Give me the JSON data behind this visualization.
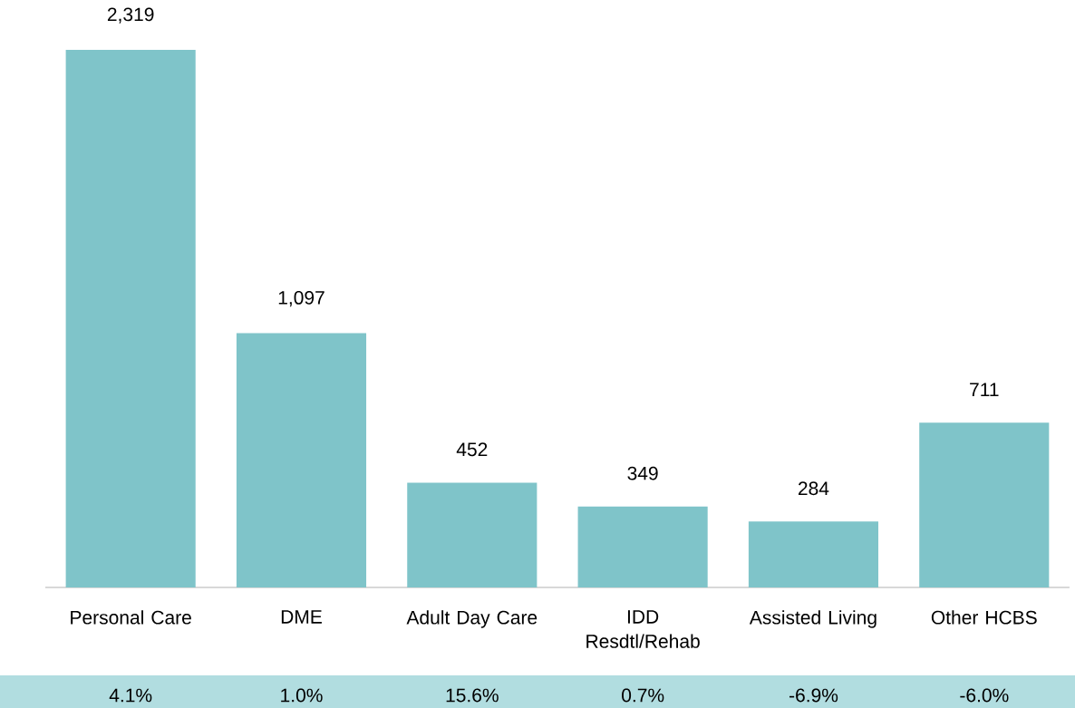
{
  "chart_data": {
    "type": "bar",
    "categories": [
      "Personal Care",
      "DME",
      "Adult Day Care",
      "IDD Resdtl/Rehab",
      "Assisted Living",
      "Other HCBS"
    ],
    "values": [
      2319,
      1097,
      452,
      349,
      284,
      711
    ],
    "value_labels": [
      "2,319",
      "1,097",
      "452",
      "349",
      "284",
      "711"
    ],
    "color": "#7fc4c9",
    "annotations": [
      "4.1%",
      "1.0%",
      "15.6%",
      "0.7%",
      "-6.9%",
      "-6.0%"
    ]
  }
}
